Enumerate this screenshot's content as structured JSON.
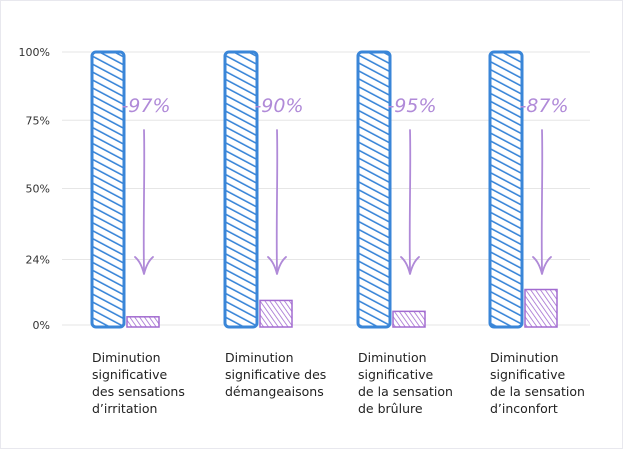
{
  "chart_data": {
    "type": "bar",
    "title": "",
    "xlabel": "",
    "ylabel": "",
    "ylim": [
      0,
      100
    ],
    "y_ticks": [
      "0%",
      "24%",
      "50%",
      "75%",
      "100%"
    ],
    "y_tick_values": [
      0,
      24,
      50,
      75,
      100
    ],
    "grid": true,
    "categories": [
      "Diminution significative des sensations d’irritation",
      "Diminution significative des démangeaisons",
      "Diminution significative de la sensation de brûlure",
      "Diminution significative de la sensation d’inconfort"
    ],
    "category_lines": [
      [
        "Diminution",
        "significative",
        "des sensations",
        "d’irritation"
      ],
      [
        "Diminution",
        "significative des",
        "démangeaisons"
      ],
      [
        "Diminution",
        "significative",
        "de la sensation",
        "de brûlure"
      ],
      [
        "Diminution",
        "significative",
        "de la sensation",
        "d’inconfort"
      ]
    ],
    "series": [
      {
        "values": [
          100,
          100,
          100,
          100
        ]
      },
      {
        "values": [
          3,
          9,
          5,
          13
        ]
      }
    ],
    "annotations": [
      "-97%",
      "-90%",
      "-95%",
      "-87%"
    ],
    "colors": {
      "before": "#3a86d8",
      "after": "#a26bd0",
      "annotation": "#b08ad8",
      "grid": "#e6e6e6"
    }
  }
}
